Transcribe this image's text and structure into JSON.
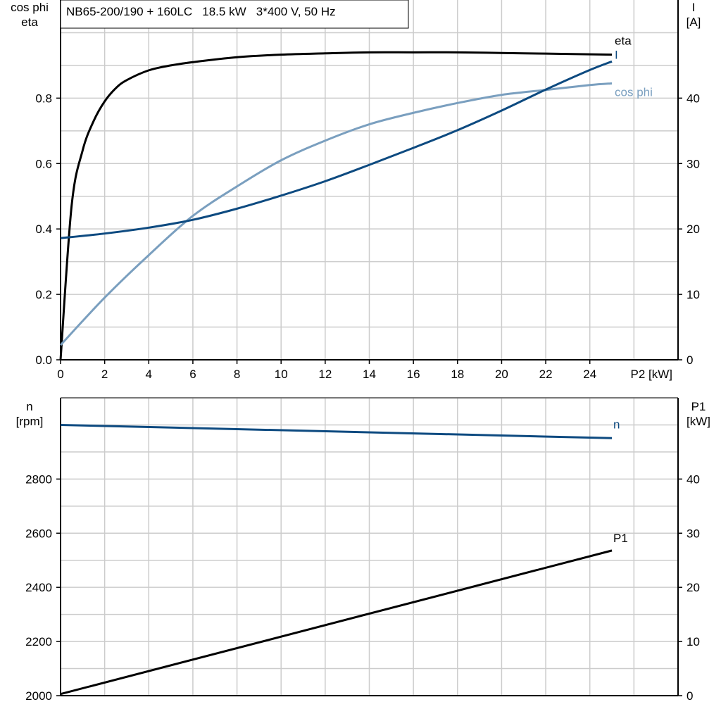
{
  "chart_data": [
    {
      "type": "line",
      "title": "NB65-200/190 + 160LC   18.5 kW   3*400 V, 50 Hz",
      "xlabel": "P2 [kW]",
      "ylabel_left": [
        "cos phi",
        "eta"
      ],
      "ylabel_right": [
        "I",
        "[A]"
      ],
      "xlim": [
        0,
        28
      ],
      "ylim_left": [
        0,
        1.1
      ],
      "ylim_right": [
        0,
        55
      ],
      "x_ticks": [
        0,
        2,
        4,
        6,
        8,
        10,
        12,
        14,
        16,
        18,
        20,
        22,
        24
      ],
      "y_ticks_left": [
        "0.0",
        "0.2",
        "0.4",
        "0.6",
        "0.8"
      ],
      "y_ticks_right": [
        "0",
        "10",
        "20",
        "30",
        "40"
      ],
      "grid": true,
      "series": [
        {
          "name": "eta",
          "axis": "left",
          "color": "#000000",
          "x": [
            0,
            0.5,
            1,
            1.5,
            2,
            2.5,
            3,
            4,
            5,
            6,
            8,
            10,
            12,
            14,
            16,
            18,
            20,
            22,
            24,
            25
          ],
          "y": [
            0,
            0.47,
            0.64,
            0.73,
            0.79,
            0.83,
            0.855,
            0.885,
            0.9,
            0.91,
            0.925,
            0.933,
            0.937,
            0.94,
            0.94,
            0.94,
            0.938,
            0.936,
            0.934,
            0.933
          ]
        },
        {
          "name": "cos phi",
          "axis": "left",
          "color": "#7a9fbf",
          "x": [
            0,
            2,
            4,
            6,
            8,
            10,
            12,
            14,
            16,
            18,
            20,
            22,
            24,
            25
          ],
          "y": [
            0.045,
            0.19,
            0.32,
            0.44,
            0.53,
            0.61,
            0.67,
            0.72,
            0.755,
            0.785,
            0.81,
            0.825,
            0.84,
            0.845
          ]
        },
        {
          "name": "I",
          "axis": "right",
          "color": "#0d4a80",
          "x": [
            0,
            2,
            4,
            6,
            8,
            10,
            12,
            14,
            16,
            18,
            20,
            22,
            24,
            25
          ],
          "y": [
            18.6,
            19.3,
            20.2,
            21.4,
            23.1,
            25.1,
            27.3,
            29.8,
            32.4,
            35.1,
            38.1,
            41.3,
            44.3,
            45.6
          ]
        }
      ]
    },
    {
      "type": "line",
      "xlabel": "",
      "ylabel_left": [
        "n",
        "[rpm]"
      ],
      "ylabel_right": [
        "P1",
        "[kW]"
      ],
      "xlim": [
        0,
        28
      ],
      "ylim_left": [
        2000,
        3100
      ],
      "ylim_right": [
        0,
        55
      ],
      "y_ticks_left": [
        "2000",
        "2200",
        "2400",
        "2600",
        "2800"
      ],
      "y_ticks_right": [
        "0",
        "10",
        "20",
        "30",
        "40"
      ],
      "grid": true,
      "series": [
        {
          "name": "n",
          "axis": "left",
          "color": "#0d4a80",
          "x": [
            0,
            25
          ],
          "y": [
            3000,
            2951
          ]
        },
        {
          "name": "P1",
          "axis": "right",
          "color": "#000000",
          "x": [
            0,
            25
          ],
          "y": [
            0.3,
            26.8
          ]
        }
      ]
    }
  ]
}
